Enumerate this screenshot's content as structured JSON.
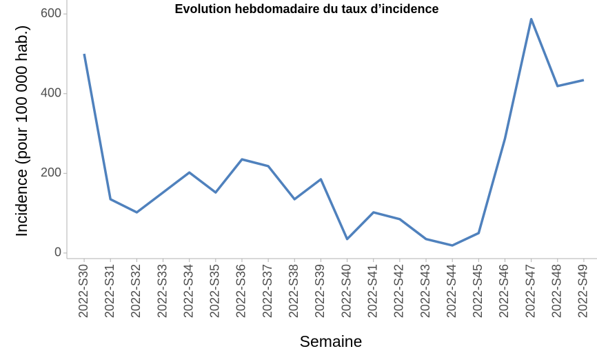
{
  "chart_data": {
    "type": "line",
    "title": "Evolution hebdomadaire du taux d’incidence",
    "x_label": "Semaine",
    "y_label": "Incidence (pour 100 000 hab.)",
    "categories": [
      "2022-S30",
      "2022-S31",
      "2022-S32",
      "2022-S33",
      "2022-S34",
      "2022-S35",
      "2022-S36",
      "2022-S37",
      "2022-S38",
      "2022-S39",
      "2022-S40",
      "2022-S41",
      "2022-S42",
      "2022-S43",
      "2022-S44",
      "2022-S45",
      "2022-S46",
      "2022-S47",
      "2022-S48",
      "2022-S49"
    ],
    "values": [
      500,
      135,
      102,
      152,
      202,
      152,
      235,
      218,
      135,
      185,
      35,
      102,
      85,
      35,
      19,
      50,
      287,
      587,
      419,
      434
    ],
    "color": "#4f81bd",
    "ylim": [
      -14,
      635
    ],
    "yticks": [
      0,
      200,
      400,
      600
    ],
    "grid": false
  }
}
